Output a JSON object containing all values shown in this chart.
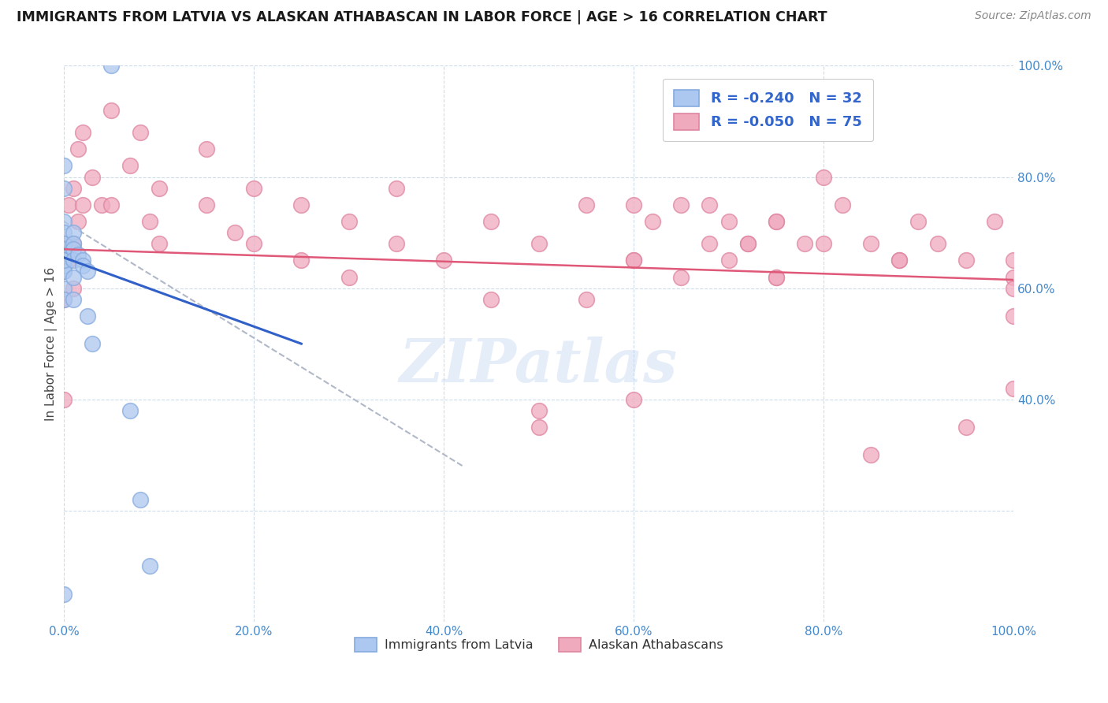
{
  "title": "IMMIGRANTS FROM LATVIA VS ALASKAN ATHABASCAN IN LABOR FORCE | AGE > 16 CORRELATION CHART",
  "source": "Source: ZipAtlas.com",
  "ylabel": "In Labor Force | Age > 16",
  "xlim": [
    0.0,
    1.0
  ],
  "ylim": [
    0.0,
    1.0
  ],
  "xticks": [
    0.0,
    0.2,
    0.4,
    0.6,
    0.8,
    1.0
  ],
  "yticks": [
    0.0,
    0.2,
    0.4,
    0.6,
    0.8,
    1.0
  ],
  "xticklabels": [
    "0.0%",
    "20.0%",
    "40.0%",
    "60.0%",
    "80.0%",
    "100.0%"
  ],
  "yticklabels_right": [
    "",
    "40.0%",
    "60.0%",
    "80.0%",
    "100.0%"
  ],
  "ytick_positions_right": [
    0.0,
    0.4,
    0.6,
    0.8,
    1.0
  ],
  "legend_r1": "-0.240",
  "legend_n1": "32",
  "legend_r2": "-0.050",
  "legend_n2": "75",
  "blue_color": "#adc8f0",
  "pink_color": "#f0aabe",
  "blue_edge_color": "#85aade",
  "pink_edge_color": "#de85a0",
  "blue_line_color": "#3060c8",
  "pink_line_color": "#e05878",
  "grid_color": "#c8d8e8",
  "watermark": "ZIPatlas",
  "blue_scatter_x": [
    0.05,
    0.0,
    0.0,
    0.0,
    0.0,
    0.0,
    0.0,
    0.0,
    0.0,
    0.0,
    0.0,
    0.0,
    0.0,
    0.0,
    0.0,
    0.0,
    0.01,
    0.01,
    0.01,
    0.01,
    0.01,
    0.01,
    0.015,
    0.02,
    0.02,
    0.025,
    0.025,
    0.03,
    0.07,
    0.08,
    0.09,
    0.0
  ],
  "blue_scatter_y": [
    1.0,
    0.82,
    0.78,
    0.72,
    0.7,
    0.68,
    0.67,
    0.66,
    0.65,
    0.63,
    0.6,
    0.58,
    0.65,
    0.64,
    0.63,
    0.65,
    0.7,
    0.68,
    0.67,
    0.65,
    0.62,
    0.58,
    0.66,
    0.65,
    0.64,
    0.63,
    0.55,
    0.5,
    0.38,
    0.22,
    0.1,
    0.05
  ],
  "pink_scatter_x": [
    0.0,
    0.0,
    0.0,
    0.005,
    0.005,
    0.01,
    0.01,
    0.01,
    0.015,
    0.015,
    0.02,
    0.02,
    0.03,
    0.04,
    0.05,
    0.05,
    0.07,
    0.08,
    0.09,
    0.1,
    0.1,
    0.15,
    0.15,
    0.2,
    0.2,
    0.25,
    0.25,
    0.3,
    0.3,
    0.35,
    0.35,
    0.4,
    0.45,
    0.45,
    0.5,
    0.5,
    0.55,
    0.55,
    0.6,
    0.6,
    0.62,
    0.65,
    0.65,
    0.68,
    0.68,
    0.7,
    0.72,
    0.75,
    0.75,
    0.78,
    0.8,
    0.82,
    0.85,
    0.85,
    0.88,
    0.9,
    0.92,
    0.95,
    0.95,
    0.98,
    1.0,
    1.0,
    1.0,
    1.0,
    1.0,
    0.18,
    0.5,
    0.6,
    0.6,
    0.7,
    0.72,
    0.75,
    0.75,
    0.8,
    0.88
  ],
  "pink_scatter_y": [
    0.68,
    0.4,
    0.58,
    0.75,
    0.65,
    0.78,
    0.68,
    0.6,
    0.85,
    0.72,
    0.88,
    0.75,
    0.8,
    0.75,
    0.92,
    0.75,
    0.82,
    0.88,
    0.72,
    0.78,
    0.68,
    0.85,
    0.75,
    0.78,
    0.68,
    0.75,
    0.65,
    0.72,
    0.62,
    0.78,
    0.68,
    0.65,
    0.72,
    0.58,
    0.35,
    0.68,
    0.75,
    0.58,
    0.75,
    0.65,
    0.72,
    0.75,
    0.62,
    0.75,
    0.68,
    0.72,
    0.68,
    0.72,
    0.62,
    0.68,
    0.8,
    0.75,
    0.68,
    0.3,
    0.65,
    0.72,
    0.68,
    0.65,
    0.35,
    0.72,
    0.65,
    0.62,
    0.6,
    0.55,
    0.42,
    0.7,
    0.38,
    0.65,
    0.4,
    0.65,
    0.68,
    0.72,
    0.62,
    0.68,
    0.65
  ],
  "blue_trend_x": [
    0.0,
    0.25
  ],
  "blue_trend_y": [
    0.655,
    0.5
  ],
  "pink_trend_x": [
    0.0,
    1.0
  ],
  "pink_trend_y": [
    0.67,
    0.615
  ],
  "dashed_trend_x": [
    0.0,
    0.42
  ],
  "dashed_trend_y": [
    0.72,
    0.28
  ]
}
